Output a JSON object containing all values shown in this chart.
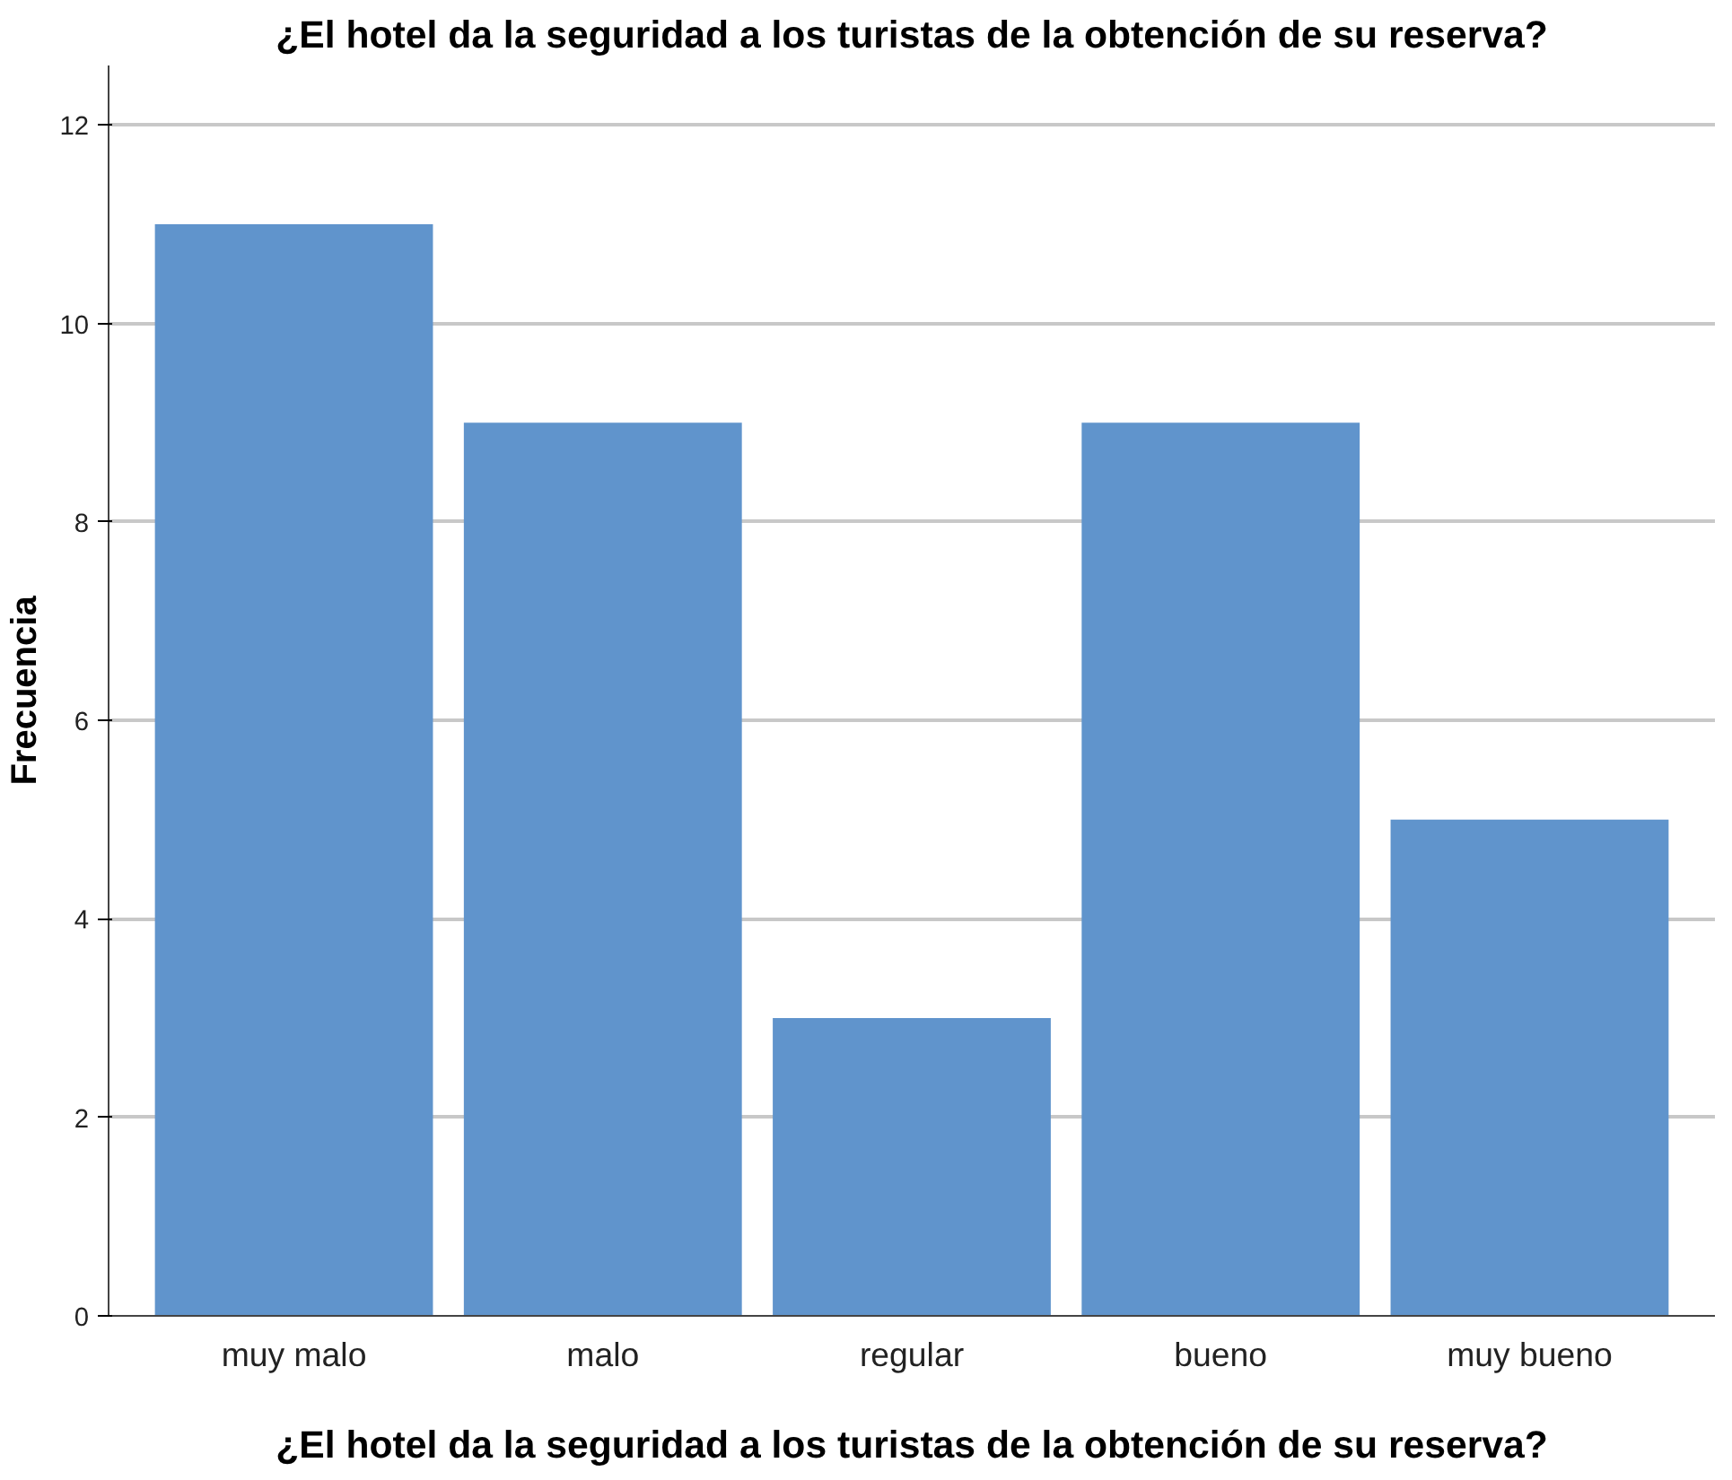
{
  "chart_data": {
    "type": "bar",
    "title": "¿El hotel da la seguridad a los turistas de la obtención de su reserva?",
    "xlabel": "¿El hotel da la seguridad a los turistas de la obtención de su reserva?",
    "ylabel": "Frecuencia",
    "categories": [
      "muy malo",
      "malo",
      "regular",
      "bueno",
      "muy bueno"
    ],
    "values": [
      11,
      9,
      3,
      9,
      5
    ],
    "color": "#6094cc",
    "ylim": [
      0,
      12.6
    ],
    "yticks": [
      0,
      2,
      4,
      6,
      8,
      10,
      12
    ],
    "grid": "y"
  }
}
